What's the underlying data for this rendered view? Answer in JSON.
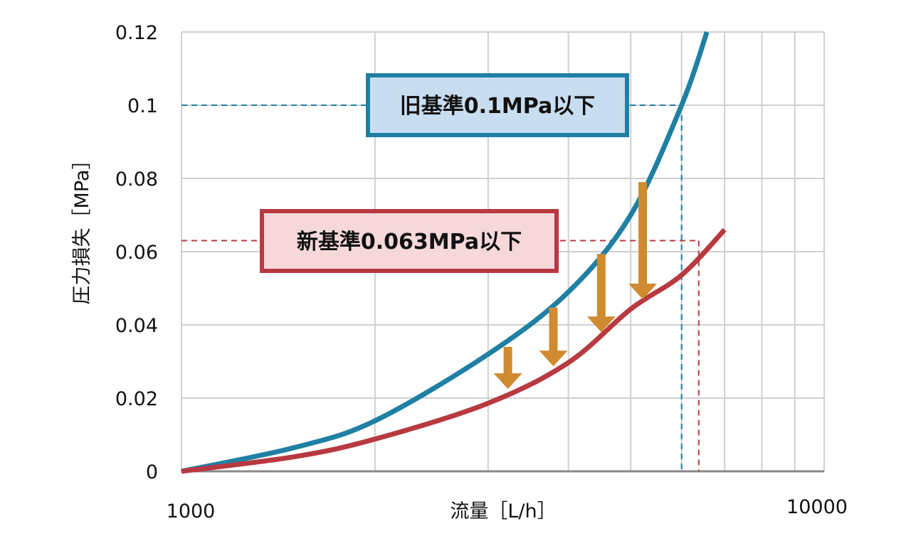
{
  "chart_data": {
    "type": "line",
    "title": "",
    "xlabel": "流量［L/h］",
    "ylabel": "圧力損失［MPa］",
    "xscale": "log",
    "xlim": [
      1000,
      10000
    ],
    "ylim": [
      0,
      0.12
    ],
    "x_tick_labels": [
      "1000",
      "10000"
    ],
    "y_ticks": [
      0,
      0.02,
      0.04,
      0.06,
      0.08,
      0.1,
      0.12
    ],
    "y_tick_labels": [
      "0",
      "0.02",
      "0.04",
      "0.06",
      "0.08",
      "0.1",
      "0.12"
    ],
    "grid": true,
    "series": [
      {
        "color": "#1f80a4",
        "points": [
          [
            1000,
            0
          ],
          [
            1500,
            0.0065
          ],
          [
            2000,
            0.0138
          ],
          [
            3000,
            0.032
          ],
          [
            4000,
            0.049
          ],
          [
            5000,
            0.07
          ],
          [
            6000,
            0.1
          ],
          [
            6570,
            0.12
          ]
        ]
      },
      {
        "color": "#b83a40",
        "points": [
          [
            1000,
            0
          ],
          [
            1500,
            0.004
          ],
          [
            2000,
            0.0088
          ],
          [
            3000,
            0.0186
          ],
          [
            4000,
            0.0297
          ],
          [
            5000,
            0.0443
          ],
          [
            6000,
            0.0536
          ],
          [
            7000,
            0.066
          ]
        ]
      }
    ],
    "reference_lines": [
      {
        "label": "旧基準0.1MPa以下",
        "y": 0.1,
        "x": 6000,
        "color": "#1f80a4",
        "box_fill": "#c8def0"
      },
      {
        "label": "新基準0.063MPa以下",
        "y": 0.063,
        "x": 6380,
        "color": "#b83a40",
        "box_fill": "#f6d8da"
      }
    ],
    "arrows": {
      "color": "#d08a30",
      "items": [
        {
          "x": 3220,
          "from": 0.034,
          "to": 0.0225
        },
        {
          "x": 3790,
          "from": 0.0447,
          "to": 0.0287
        },
        {
          "x": 4500,
          "from": 0.0594,
          "to": 0.038
        },
        {
          "x": 5220,
          "from": 0.079,
          "to": 0.047
        }
      ]
    }
  }
}
